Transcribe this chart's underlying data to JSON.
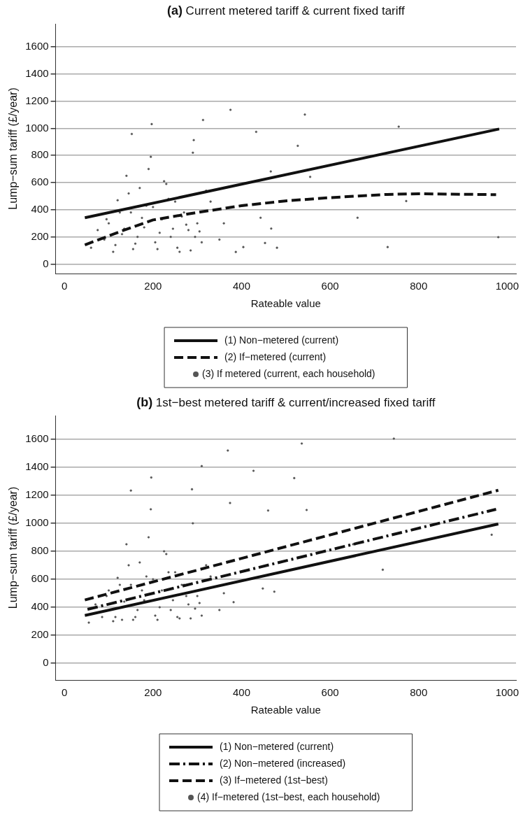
{
  "chart_data": [
    {
      "type": "line",
      "title": "(a) Current metered tariff & current fixed tariff",
      "xlabel": "Rateable value",
      "ylabel": "Lump−sum tariff (£/year)",
      "xlim": [
        -20,
        1020
      ],
      "ylim": [
        -70,
        1770
      ],
      "xticks": [
        0,
        200,
        400,
        600,
        800,
        1000
      ],
      "yticks": [
        0,
        200,
        400,
        600,
        800,
        1000,
        1200,
        1400,
        1600
      ],
      "grid": "y",
      "legend": "bottom",
      "series": [
        {
          "name": "(1) Non−metered (current)",
          "color": "#111111",
          "line_style": "solid",
          "marker": "none",
          "x": [
            46,
            982
          ],
          "values": [
            341,
            995
          ]
        },
        {
          "name": "(2) If−metered (current)",
          "color": "#111111",
          "line_style": "dashed",
          "marker": "none",
          "x": [
            46,
            128,
            200,
            285,
            400,
            503,
            600,
            729,
            800,
            975
          ],
          "values": [
            141,
            242,
            325,
            372,
            430,
            466,
            489,
            513,
            518,
            511
          ]
        },
        {
          "name": "(3) If metered (current, each household)",
          "type": "scatter",
          "color": "#555555",
          "marker": "circle",
          "x": [
            375,
            543,
            313,
            197,
            755,
            152,
            433,
            527,
            292,
            555,
            772,
            662,
            980,
            730,
            480,
            453,
            387,
            404,
            466,
            467,
            443,
            60,
            75,
            90,
            100,
            110,
            120,
            130,
            140,
            150,
            160,
            170,
            180,
            190,
            200,
            210,
            220,
            230,
            240,
            250,
            260,
            270,
            280,
            290,
            300,
            310,
            320,
            95,
            115,
            135,
            155,
            175,
            195,
            215,
            235,
            255,
            275,
            295,
            125,
            145,
            165,
            185,
            205,
            225,
            245,
            265,
            285,
            305,
            330,
            350,
            360
          ],
          "values": [
            1136,
            1101,
            1061,
            1031,
            1012,
            958,
            974,
            871,
            913,
            642,
            464,
            341,
            198,
            125,
            120,
            155,
            89,
            125,
            682,
            261,
            341,
            120,
            250,
            180,
            300,
            90,
            470,
            220,
            650,
            380,
            150,
            560,
            270,
            700,
            420,
            110,
            330,
            590,
            200,
            460,
            90,
            380,
            250,
            820,
            300,
            160,
            540,
            330,
            140,
            260,
            110,
            340,
            790,
            230,
            480,
            120,
            290,
            200,
            380,
            520,
            200,
            430,
            160,
            610,
            260,
            350,
            100,
            240,
            460,
            180,
            300
          ]
        }
      ]
    },
    {
      "type": "line",
      "title": "(b) 1st−best metered tariff & current/increased fixed tariff",
      "xlabel": "Rateable value",
      "ylabel": "Lump−sum tariff (£/year)",
      "xlim": [
        -20,
        1020
      ],
      "ylim": [
        -120,
        1770
      ],
      "xticks": [
        0,
        200,
        400,
        600,
        800,
        1000
      ],
      "yticks": [
        0,
        200,
        400,
        600,
        800,
        1000,
        1200,
        1400,
        1600
      ],
      "grid": "y",
      "legend": "bottom",
      "series": [
        {
          "name": "(1) Non−metered (current)",
          "color": "#111111",
          "line_style": "solid",
          "marker": "none",
          "x": [
            46,
            980
          ],
          "values": [
            341,
            995
          ]
        },
        {
          "name": "(2) Non−metered (increased)",
          "color": "#111111",
          "line_style": "dashdot",
          "marker": "none",
          "x": [
            52,
            975
          ],
          "values": [
            385,
            1100
          ]
        },
        {
          "name": "(3) If−metered (1st−best)",
          "color": "#111111",
          "line_style": "dashed",
          "marker": "none",
          "x": [
            46,
            980
          ],
          "values": [
            452,
            1236
          ]
        },
        {
          "name": "(4) If−metered (1st−best, each household)",
          "type": "scatter",
          "color": "#555555",
          "marker": "circle",
          "x": [
            744,
            536,
            369,
            310,
            427,
            519,
            196,
            150,
            288,
            374,
            460,
            547,
            719,
            965,
            474,
            448,
            382,
            652,
            761,
            55,
            70,
            85,
            100,
            110,
            120,
            130,
            140,
            150,
            160,
            170,
            180,
            190,
            200,
            210,
            220,
            230,
            240,
            250,
            260,
            270,
            280,
            290,
            300,
            310,
            320,
            95,
            115,
            135,
            155,
            175,
            195,
            215,
            235,
            255,
            275,
            295,
            125,
            145,
            165,
            185,
            205,
            225,
            245,
            265,
            285,
            305,
            330,
            350,
            360
          ],
          "values": [
            1605,
            1570,
            1520,
            1409,
            1375,
            1323,
            1327,
            1234,
            1243,
            1145,
            1091,
            1095,
            668,
            918,
            511,
            534,
            436,
            850,
            1050,
            290,
            420,
            330,
            520,
            300,
            610,
            310,
            850,
            560,
            330,
            720,
            450,
            900,
            600,
            310,
            520,
            780,
            380,
            650,
            320,
            560,
            420,
            1000,
            480,
            340,
            700,
            480,
            330,
            440,
            310,
            520,
            1100,
            400,
            650,
            330,
            480,
            390,
            560,
            700,
            380,
            620,
            340,
            800,
            450,
            560,
            320,
            430,
            620,
            380,
            500
          ]
        }
      ]
    }
  ]
}
